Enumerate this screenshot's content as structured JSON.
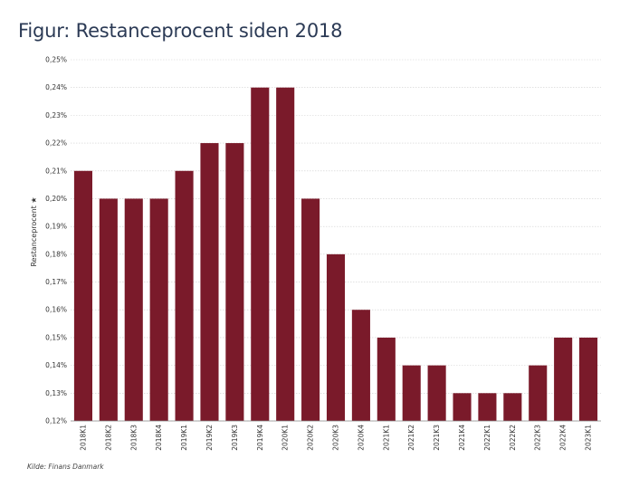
{
  "page": {
    "title": "Figur: Restanceprocent siden 2018",
    "source": "Kilde: Finans Danmark"
  },
  "chart_data": {
    "type": "bar",
    "title": "Figur: Restanceprocent siden 2018",
    "ylabel": "Restanceprocent ★",
    "xlabel": "",
    "ylim": [
      0.12,
      0.25
    ],
    "yticks": [
      "0,12%",
      "0,13%",
      "0,14%",
      "0,15%",
      "0,16%",
      "0,17%",
      "0,18%",
      "0,19%",
      "0,20%",
      "0,21%",
      "0,22%",
      "0,23%",
      "0,24%",
      "0,25%"
    ],
    "categories": [
      "2018K1",
      "2018K2",
      "2018K3",
      "2018K4",
      "2019K1",
      "2019K2",
      "2019K3",
      "2019K4",
      "2020K1",
      "2020K2",
      "2020K3",
      "2020K4",
      "2021K1",
      "2021K2",
      "2021K3",
      "2021K4",
      "2022K1",
      "2022K2",
      "2022K3",
      "2022K4",
      "2023K1"
    ],
    "values": [
      0.21,
      0.2,
      0.2,
      0.2,
      0.21,
      0.22,
      0.22,
      0.24,
      0.24,
      0.2,
      0.18,
      0.16,
      0.15,
      0.14,
      0.14,
      0.13,
      0.13,
      0.13,
      0.14,
      0.15,
      0.15
    ],
    "bar_color": "#7a1a2a",
    "grid": true,
    "legend": "none"
  }
}
